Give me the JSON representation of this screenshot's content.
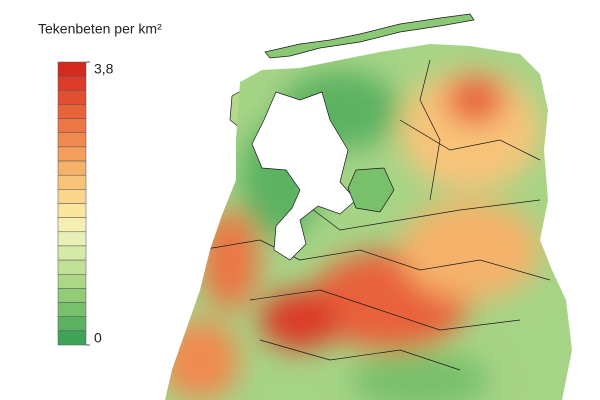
{
  "legend": {
    "title": "Tekenbeten per km²",
    "range": [
      0,
      3.8
    ],
    "ticks": [
      {
        "value": 3.8,
        "label": "3,8"
      },
      {
        "value": 0,
        "label": "0"
      }
    ],
    "colors": [
      "#d42a20",
      "#dc3b28",
      "#e24e30",
      "#e8623a",
      "#ec7644",
      "#f08a50",
      "#f39e5c",
      "#f6b26a",
      "#f8c47a",
      "#fad68c",
      "#fbe6a0",
      "#f6efb4",
      "#e8f0b8",
      "#d6eaa8",
      "#c2e196",
      "#abd786",
      "#92cc78",
      "#78c06c",
      "#5cb262",
      "#3fa458"
    ]
  }
}
